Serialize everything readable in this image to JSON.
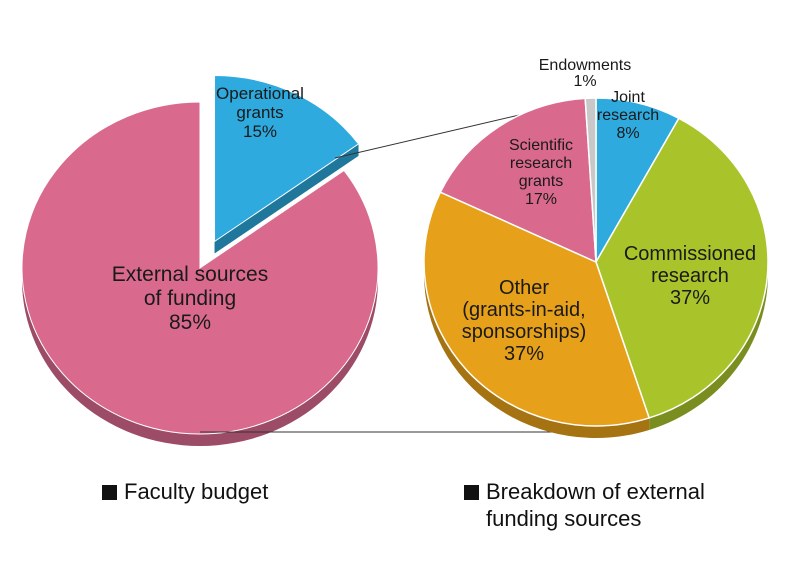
{
  "chart_data": [
    {
      "type": "pie",
      "caption": "Faculty budget",
      "slices": [
        {
          "label_lines": [
            "Operational",
            "grants",
            "15%"
          ],
          "value": 15,
          "color": "#2eaadf",
          "exploded": true
        },
        {
          "label_lines": [
            "External sources",
            "of funding",
            "85%"
          ],
          "value": 85,
          "color": "#d96a8e",
          "exploded": false
        }
      ]
    },
    {
      "type": "pie",
      "caption_lines": [
        "Breakdown of external",
        "funding sources"
      ],
      "slices": [
        {
          "label_lines": [
            "Joint",
            "research",
            "8%"
          ],
          "value": 8,
          "color": "#2eaadf"
        },
        {
          "label_lines": [
            "Commissioned",
            "research",
            "37%"
          ],
          "value": 37,
          "color": "#a9c42b"
        },
        {
          "label_lines": [
            "Other",
            "(grants-in-aid,",
            "sponsorships)",
            "37%"
          ],
          "value": 37,
          "color": "#e6a01a"
        },
        {
          "label_lines": [
            "Scientific",
            "research",
            "grants",
            "17%"
          ],
          "value": 17,
          "color": "#d96a8e"
        },
        {
          "label_lines": [
            "Endowments",
            "1%"
          ],
          "value": 1,
          "color": "#c8c8c8"
        }
      ]
    }
  ],
  "colors": {
    "caption_square": "#111111",
    "connector_line": "#333333"
  }
}
